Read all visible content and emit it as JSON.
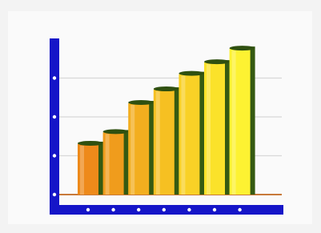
{
  "chart_data": {
    "type": "bar",
    "categories": [
      null,
      null,
      null,
      null,
      null,
      null,
      null
    ],
    "values": [
      1.3,
      1.6,
      2.35,
      2.7,
      3.1,
      3.4,
      3.75
    ],
    "colors": [
      "#ee8a1a",
      "#f09c1c",
      "#f3ae1f",
      "#f6c022",
      "#f9d126",
      "#fbe22a",
      "#fdf232"
    ],
    "ylim": [
      0,
      4
    ],
    "yticks": [
      0,
      1,
      2,
      3
    ],
    "grid": true
  }
}
